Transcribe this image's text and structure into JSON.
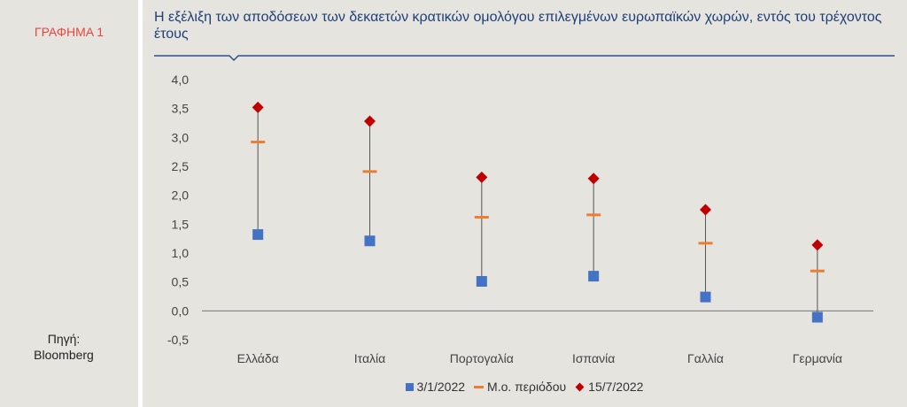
{
  "figure_label": "ΓΡΑΦΗΜΑ 1",
  "source_lines": [
    "Πηγή:",
    "Bloomberg"
  ],
  "colors": {
    "start": "#4472c4",
    "average": "#ed7d31",
    "end": "#c00000",
    "title": "#1f3f78",
    "label_red": "#e8473e"
  },
  "chart_data": {
    "type": "scatter",
    "title": "Η εξέλιξη των αποδόσεων των δεκαετών κρατικών ομολόγου επιλεγμένων ευρωπαϊκών χωρών, εντός του τρέχοντος έτους",
    "categories": [
      "Ελλάδα",
      "Ιταλία",
      "Πορτογαλία",
      "Ισπανία",
      "Γαλλία",
      "Γερμανία"
    ],
    "series": [
      {
        "name": "3/1/2022",
        "marker": "square",
        "values": [
          1.32,
          1.21,
          0.51,
          0.6,
          0.24,
          -0.11
        ]
      },
      {
        "name": "Μ.ο. περιόδου",
        "marker": "dash",
        "values": [
          2.92,
          2.41,
          1.62,
          1.66,
          1.17,
          0.69
        ]
      },
      {
        "name": "15/7/2022",
        "marker": "diamond",
        "values": [
          3.52,
          3.28,
          2.31,
          2.29,
          1.75,
          1.14
        ]
      }
    ],
    "ylim": [
      -0.5,
      4.0
    ],
    "yticks": [
      "4,0",
      "3,5",
      "3,0",
      "2,5",
      "2,0",
      "1,5",
      "1,0",
      "0,5",
      "0,0",
      "-0,5"
    ],
    "ytick_values": [
      4.0,
      3.5,
      3.0,
      2.5,
      2.0,
      1.5,
      1.0,
      0.5,
      0.0,
      -0.5
    ],
    "xlabel": "",
    "ylabel": "",
    "grid": false,
    "legend_position": "bottom"
  }
}
